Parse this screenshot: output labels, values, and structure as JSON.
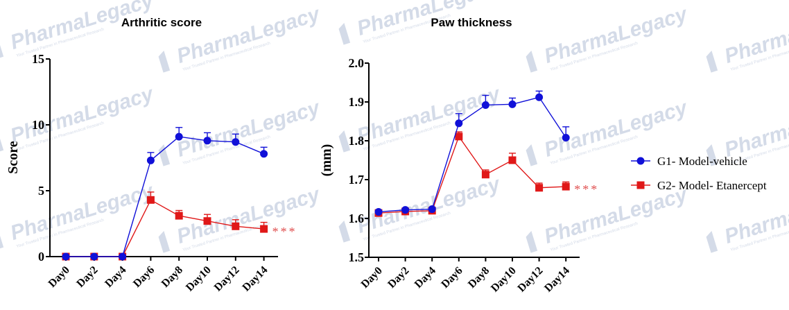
{
  "watermark": {
    "text": "PharmaLegacy",
    "tagline": "Your Trusted Partner in Pharmaceutical Research"
  },
  "legend": {
    "entries": [
      {
        "label": "G1- Model-vehicle",
        "color": "#1010d8",
        "marker": "circle"
      },
      {
        "label": "G2- Model- Etanercept",
        "color": "#e01818",
        "marker": "square"
      }
    ]
  },
  "chart_data": [
    {
      "type": "line",
      "title": "Arthritic score",
      "xlabel": "",
      "ylabel": "Score",
      "ylim": [
        0,
        15
      ],
      "yticks": [
        "0",
        "5",
        "10",
        "15"
      ],
      "yticks_values": [
        0,
        5,
        10,
        15
      ],
      "categories": [
        "Day0",
        "Day2",
        "Day4",
        "Day6",
        "Day8",
        "Day10",
        "Day12",
        "Day14"
      ],
      "series": [
        {
          "name": "G1- Model-vehicle",
          "color": "#1010d8",
          "marker": "circle",
          "values": [
            0,
            0,
            0,
            7.3,
            9.1,
            8.8,
            8.7,
            7.8
          ],
          "err": [
            0,
            0,
            0,
            0.6,
            0.7,
            0.6,
            0.6,
            0.5
          ]
        },
        {
          "name": "G2- Model- Etanercept",
          "color": "#e01818",
          "marker": "square",
          "values": [
            0,
            0,
            0,
            4.3,
            3.1,
            2.7,
            2.3,
            2.1
          ],
          "err": [
            0,
            0,
            0,
            0.6,
            0.4,
            0.5,
            0.5,
            0.5
          ]
        }
      ],
      "annotation": {
        "text": "***",
        "color": "#e05050"
      }
    },
    {
      "type": "line",
      "title": "Paw thickness",
      "xlabel": "",
      "ylabel": "(mm)",
      "ylim": [
        1.5,
        2.0
      ],
      "yticks": [
        "1.5",
        "1.6",
        "1.7",
        "1.8",
        "1.9",
        "2.0"
      ],
      "yticks_values": [
        1.5,
        1.6,
        1.7,
        1.8,
        1.9,
        2.0
      ],
      "categories": [
        "Day0",
        "Day2",
        "Day4",
        "Day6",
        "Day8",
        "Day10",
        "Day12",
        "Day14"
      ],
      "series": [
        {
          "name": "G1- Model-vehicle",
          "color": "#1010d8",
          "marker": "circle",
          "values": [
            1.617,
            1.622,
            1.624,
            1.845,
            1.892,
            1.894,
            1.912,
            1.808
          ],
          "err": [
            0.004,
            0.003,
            0.003,
            0.025,
            0.025,
            0.016,
            0.016,
            0.028
          ]
        },
        {
          "name": "G2- Model- Etanercept",
          "color": "#e01818",
          "marker": "square",
          "values": [
            1.614,
            1.618,
            1.62,
            1.811,
            1.713,
            1.75,
            1.679,
            1.682
          ],
          "err": [
            0.004,
            0.003,
            0.003,
            0.012,
            0.012,
            0.018,
            0.012,
            0.012
          ]
        }
      ],
      "annotation": {
        "text": "***",
        "color": "#e05050"
      }
    }
  ]
}
